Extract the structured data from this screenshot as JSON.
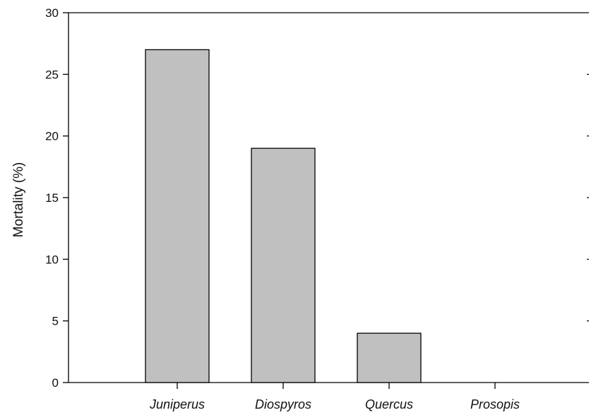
{
  "chart_data": {
    "type": "bar",
    "title": "",
    "xlabel": "",
    "ylabel": "Mortality (%)",
    "categories": [
      "Juniperus",
      "Diospyros",
      "Quercus",
      "Prosopis"
    ],
    "values": [
      27,
      19,
      4,
      0
    ],
    "ylim": [
      0,
      30
    ],
    "yticks": [
      "0",
      "5",
      "10",
      "15",
      "20",
      "25",
      "30"
    ],
    "grid": false,
    "legend": "none",
    "bar_color": "#c0c0c0",
    "bar_edge_color": "#000000",
    "axis_color": "#000000"
  }
}
